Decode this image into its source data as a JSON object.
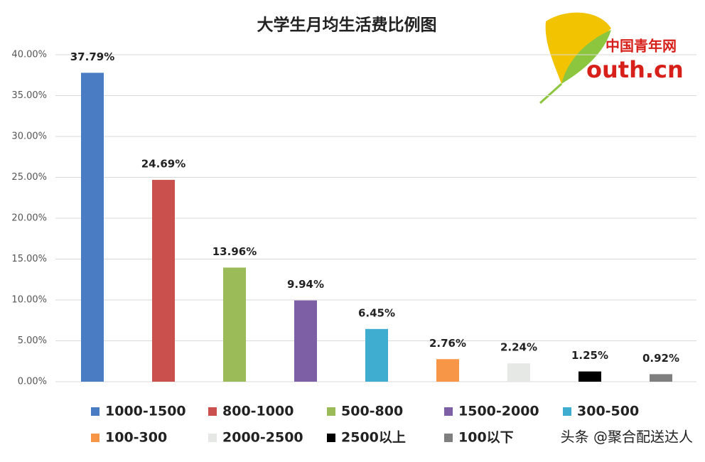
{
  "chart_data": {
    "type": "bar",
    "title": "大学生月均生活费比例图",
    "categories": [
      "1000-1500",
      "800-1000",
      "500-800",
      "1500-2000",
      "300-500",
      "100-300",
      "2000-2500",
      "2500以上",
      "100以下"
    ],
    "values": [
      37.79,
      24.69,
      13.96,
      9.94,
      6.45,
      2.76,
      2.24,
      1.25,
      0.92
    ],
    "value_labels": [
      "37.79%",
      "24.69%",
      "13.96%",
      "9.94%",
      "6.45%",
      "2.76%",
      "2.24%",
      "1.25%",
      "0.92%"
    ],
    "colors": [
      "#4a7cc4",
      "#c9504d",
      "#9bbb59",
      "#7d5fa6",
      "#3fadd0",
      "#f79646",
      "#e6e8e6",
      "#000000",
      "#7f7f7f"
    ],
    "ylim": [
      0,
      40
    ],
    "yticks": [
      {
        "value": 0,
        "label": "0.00%"
      },
      {
        "value": 5,
        "label": "5.00%"
      },
      {
        "value": 10,
        "label": "10.00%"
      },
      {
        "value": 15,
        "label": "15.00%"
      },
      {
        "value": 20,
        "label": "20.00%"
      },
      {
        "value": 25,
        "label": "25.00%"
      },
      {
        "value": 30,
        "label": "30.00%"
      },
      {
        "value": 35,
        "label": "35.00%"
      },
      {
        "value": 40,
        "label": "40.00%"
      }
    ],
    "grid": true
  },
  "logo": {
    "brand": "中国青年网",
    "site": "outh.cn"
  },
  "watermark": "头条 @聚合配送达人"
}
